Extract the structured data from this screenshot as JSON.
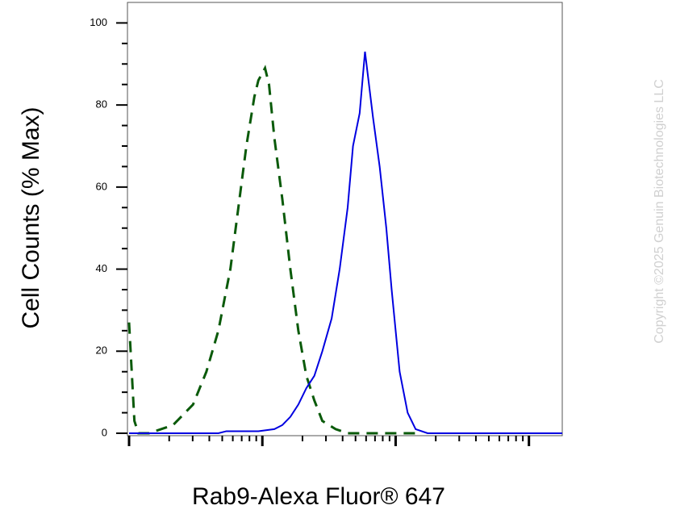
{
  "chart_data": {
    "type": "line",
    "x_label": "Rab9-Alexa Fluor® 647",
    "y_label": "Cell Counts (% Max)",
    "watermark": "Copyright ©2025 Genuin Biotechnologies LLC",
    "log_x": true,
    "xlim": [
      0,
      3.25
    ],
    "xticks": [
      0,
      1,
      2,
      3
    ],
    "ylim": [
      0,
      105
    ],
    "yticks": [
      0,
      20,
      40,
      60,
      80,
      100
    ],
    "series": [
      {
        "color": "#0a5a0a",
        "dash": true,
        "x": [
          0,
          0.02,
          0.04,
          0.07,
          0.15,
          0.24,
          0.33,
          0.42,
          0.48,
          0.58,
          0.67,
          0.76,
          0.82,
          0.88,
          0.94,
          0.97,
          1.02,
          1.05,
          1.09,
          1.15,
          1.21,
          1.27,
          1.33,
          1.39,
          1.45,
          1.55,
          1.64,
          2.18
        ],
        "values": [
          27,
          15,
          3,
          0,
          0,
          1,
          2,
          5,
          7,
          15,
          25,
          40,
          55,
          70,
          82,
          86,
          89,
          85,
          72,
          57,
          40,
          25,
          14,
          8,
          3,
          1,
          0,
          0
        ]
      },
      {
        "color": "#0000e0",
        "dash": false,
        "x": [
          0,
          0.67,
          0.73,
          0.97,
          1.09,
          1.15,
          1.21,
          1.27,
          1.33,
          1.39,
          1.45,
          1.52,
          1.58,
          1.64,
          1.68,
          1.73,
          1.77,
          1.8,
          1.83,
          1.88,
          1.93,
          1.97,
          2.03,
          2.09,
          2.15,
          2.24,
          3.25
        ],
        "values": [
          0,
          0,
          0.5,
          0.5,
          1,
          2,
          4,
          7,
          11,
          14,
          20,
          28,
          40,
          55,
          70,
          78,
          93,
          85,
          77,
          65,
          50,
          35,
          15,
          5,
          1,
          0,
          0
        ]
      }
    ]
  }
}
